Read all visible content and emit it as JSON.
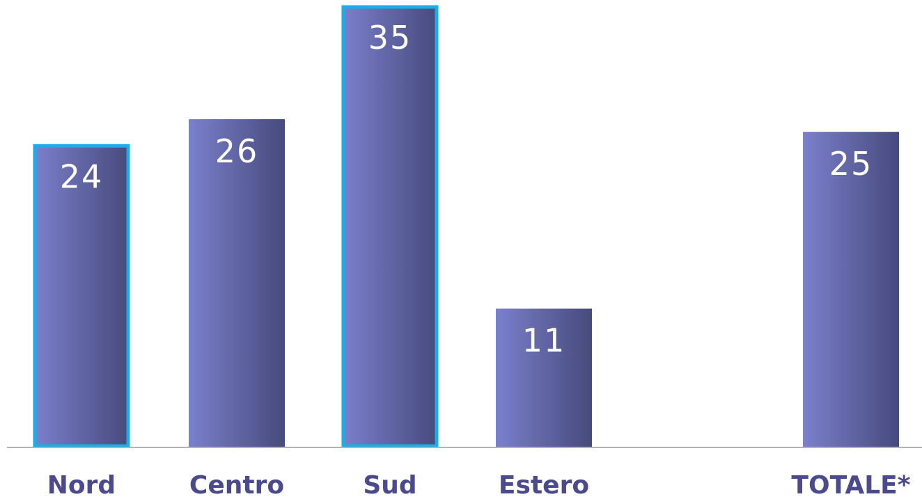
{
  "chart_data": {
    "type": "bar",
    "categories": [
      "Nord",
      "Centro",
      "Sud",
      "Estero",
      "TOTALE*"
    ],
    "values": [
      24,
      26,
      35,
      11,
      25
    ],
    "highlighted": [
      "Nord",
      "Sud"
    ],
    "title": "",
    "xlabel": "",
    "ylabel": "",
    "ylim": [
      0,
      35
    ],
    "grid": false,
    "legend": "none",
    "colors": {
      "bar_light": "#7b80cc",
      "bar_dark": "#474a7c",
      "highlight_border": "#1aaee8",
      "value_text": "#ffffff",
      "category_text": "#4b4a8c",
      "axis_line": "#b3b3b3"
    }
  }
}
